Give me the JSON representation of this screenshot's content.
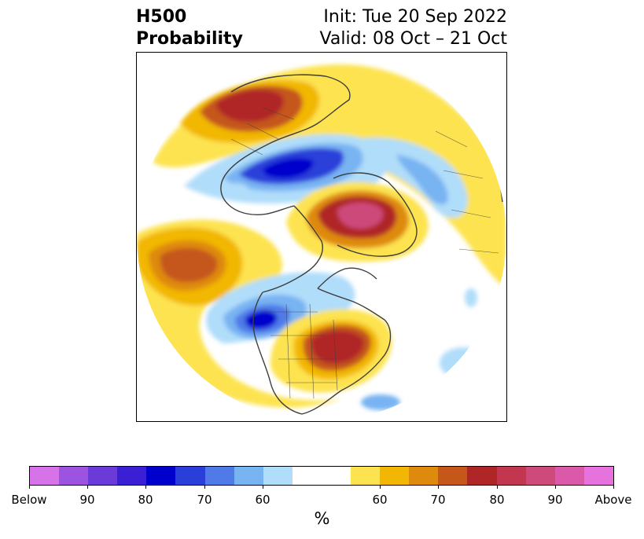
{
  "title": {
    "left_line1": "H500",
    "left_line2": "Probability",
    "right_line1": "Init: Tue 20 Sep 2022",
    "right_line2": "Valid: 08 Oct – 21 Oct"
  },
  "colorbar": {
    "below_colors": [
      "#d773e8",
      "#9b53e0",
      "#6a3bd9",
      "#3a1fd4",
      "#0000cc",
      "#2a3fd9",
      "#4f7ae8",
      "#78b3f2",
      "#b0ddfa"
    ],
    "neutral_color": "#ffffff",
    "above_colors": [
      "#fde34f",
      "#f2b705",
      "#de8a0f",
      "#c5571a",
      "#b02525",
      "#c2374f",
      "#cd4a7a",
      "#da5aa9",
      "#e672de"
    ],
    "tick_labels": [
      "Below",
      "90",
      "80",
      "70",
      "60",
      "60",
      "70",
      "80",
      "90",
      "Above"
    ],
    "units_label": "%"
  },
  "map": {
    "projection": "polar stereographic",
    "background_color": "#ffffff",
    "coastline_color": "#3d3d3d"
  }
}
